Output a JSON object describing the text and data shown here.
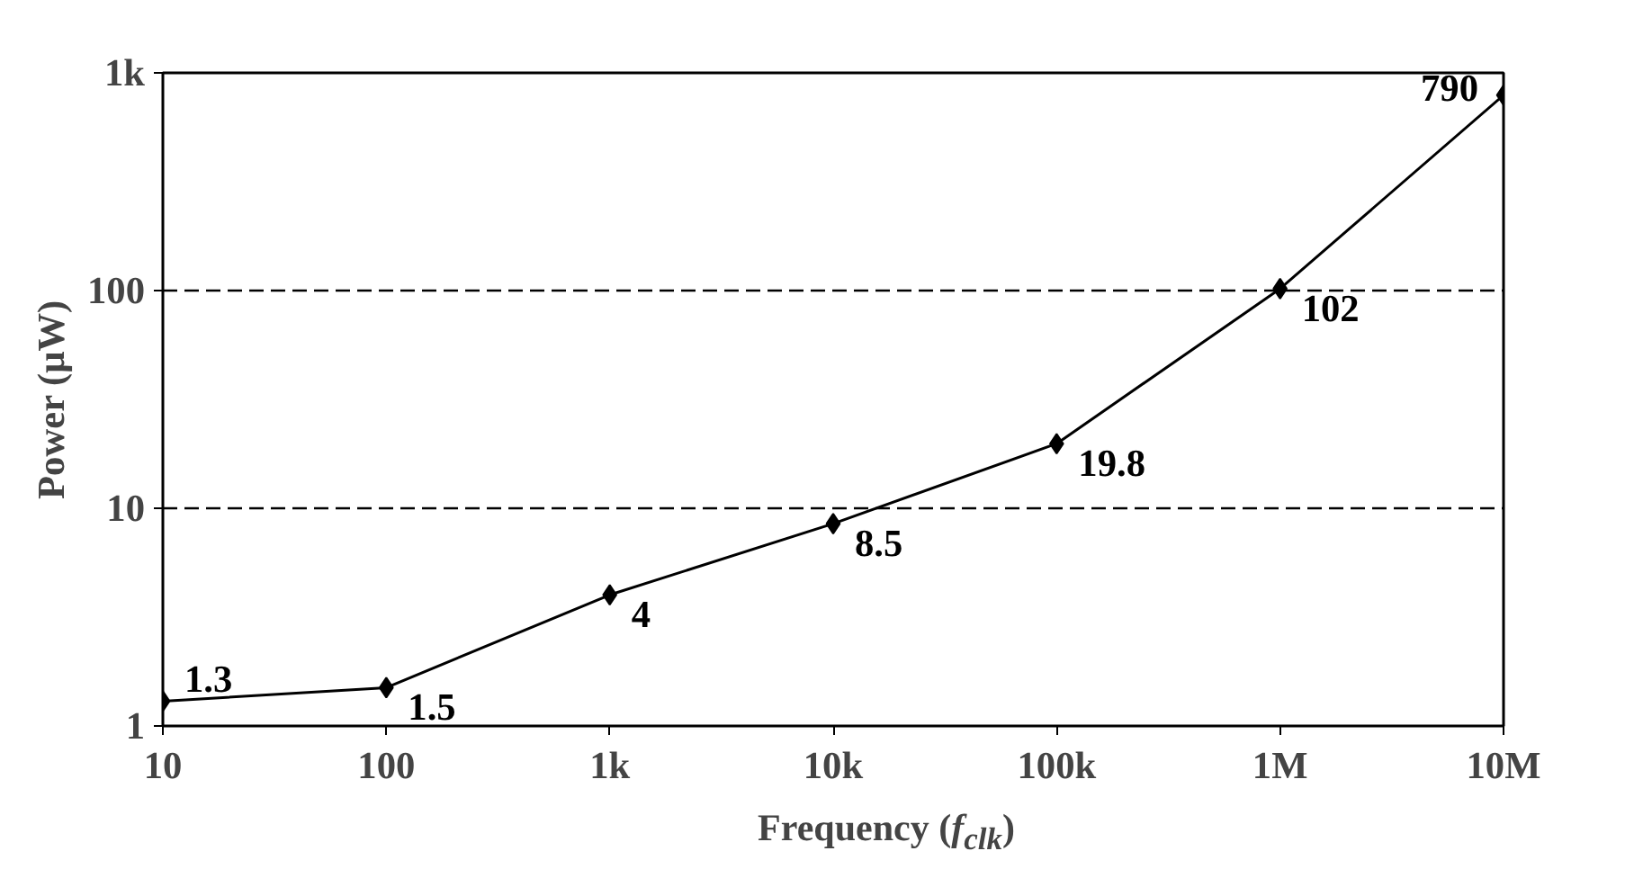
{
  "chart_data": {
    "type": "line",
    "xlabel": "Frequency (f$_{clk}$)",
    "ylabel": "Power (μW)",
    "x": [
      10,
      100,
      1000,
      10000,
      100000,
      1000000,
      10000000
    ],
    "series": [
      {
        "color": "#000000",
        "values": [
          1.3,
          1.5,
          4,
          8.5,
          19.8,
          102,
          790
        ]
      }
    ],
    "log": "xy",
    "xlim": [
      10,
      10000000
    ],
    "ylim": [
      1,
      1000
    ],
    "xticks": [
      10,
      100,
      {
        "value": 1000,
        "label": "1k"
      },
      {
        "value": 10000,
        "label": "10k"
      },
      {
        "value": 100000,
        "label": "100k"
      },
      {
        "value": 1000000,
        "label": "1M"
      },
      {
        "value": 10000000,
        "label": "10M"
      }
    ],
    "yticks": [
      1,
      10,
      100,
      {
        "value": 1000,
        "label": "1k"
      }
    ],
    "grid": "y",
    "marker": "diamond",
    "line_style": "solid",
    "data_labels": true
  }
}
